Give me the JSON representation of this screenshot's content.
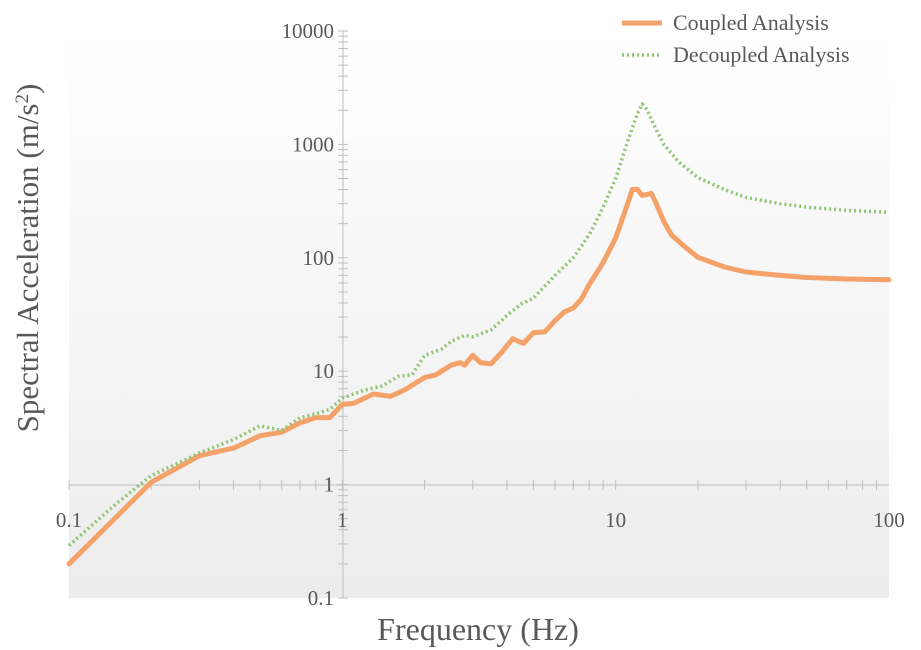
{
  "chart_data": {
    "type": "line",
    "title": "",
    "xlabel": "Frequency (Hz)",
    "ylabel": "Spectral Acceleration (m/s",
    "ylabel_sup": "2",
    "ylabel_close": ")",
    "x_scale": "log",
    "y_scale": "log",
    "xlim": [
      0.1,
      100
    ],
    "ylim": [
      0.1,
      10000
    ],
    "x_ticks": [
      0.1,
      1,
      10,
      100
    ],
    "x_tick_labels": [
      "0.1",
      "1",
      "10",
      "100"
    ],
    "y_ticks": [
      0.1,
      1,
      10,
      100,
      1000,
      10000
    ],
    "y_tick_labels": [
      "0.1",
      "1",
      "10",
      "100",
      "1000",
      "10000"
    ],
    "grid": false,
    "legend_position": "top-right",
    "series": [
      {
        "name": "Coupled Analysis",
        "color": "#F4A16A",
        "style": "solid",
        "points": [
          [
            0.1,
            0.2
          ],
          [
            0.2,
            1.05
          ],
          [
            0.3,
            1.8
          ],
          [
            0.4,
            2.1
          ],
          [
            0.5,
            2.7
          ],
          [
            0.6,
            2.9
          ],
          [
            0.7,
            3.5
          ],
          [
            0.8,
            3.9
          ],
          [
            0.9,
            3.9
          ],
          [
            1.0,
            5.1
          ],
          [
            1.1,
            5.2
          ],
          [
            1.3,
            6.3
          ],
          [
            1.5,
            6.0
          ],
          [
            1.7,
            6.9
          ],
          [
            2.0,
            8.8
          ],
          [
            2.2,
            9.3
          ],
          [
            2.5,
            11.3
          ],
          [
            2.7,
            11.9
          ],
          [
            2.8,
            11.3
          ],
          [
            3.0,
            13.8
          ],
          [
            3.2,
            11.9
          ],
          [
            3.5,
            11.6
          ],
          [
            3.8,
            14.4
          ],
          [
            4.2,
            19.3
          ],
          [
            4.6,
            17.6
          ],
          [
            5.0,
            21.8
          ],
          [
            5.5,
            22.2
          ],
          [
            6.0,
            27.9
          ],
          [
            6.5,
            33.4
          ],
          [
            7.0,
            36.1
          ],
          [
            7.5,
            43.5
          ],
          [
            8.0,
            58.0
          ],
          [
            9.0,
            91.0
          ],
          [
            10.0,
            150.0
          ],
          [
            11.0,
            289.0
          ],
          [
            11.5,
            400.0
          ],
          [
            12.0,
            401.0
          ],
          [
            12.5,
            355.0
          ],
          [
            13.5,
            370.0
          ],
          [
            14.0,
            310.0
          ],
          [
            15.0,
            209.0
          ],
          [
            16.0,
            159.0
          ],
          [
            18.0,
            124.0
          ],
          [
            20.0,
            101.0
          ],
          [
            25.0,
            83.0
          ],
          [
            30.0,
            75.0
          ],
          [
            40.0,
            70.0
          ],
          [
            50.0,
            67.0
          ],
          [
            70.0,
            65.0
          ],
          [
            100.0,
            64.0
          ]
        ]
      },
      {
        "name": "Decoupled Analysis",
        "color": "#8CC470",
        "style": "dotted",
        "points": [
          [
            0.1,
            0.29
          ],
          [
            0.15,
            0.69
          ],
          [
            0.2,
            1.2
          ],
          [
            0.3,
            1.9
          ],
          [
            0.4,
            2.5
          ],
          [
            0.5,
            3.3
          ],
          [
            0.6,
            3.0
          ],
          [
            0.7,
            3.9
          ],
          [
            0.8,
            4.2
          ],
          [
            0.9,
            4.6
          ],
          [
            1.0,
            5.8
          ],
          [
            1.2,
            6.8
          ],
          [
            1.4,
            7.4
          ],
          [
            1.6,
            9.0
          ],
          [
            1.8,
            9.3
          ],
          [
            2.0,
            13.8
          ],
          [
            2.3,
            15.6
          ],
          [
            2.5,
            18.3
          ],
          [
            2.8,
            20.7
          ],
          [
            3.0,
            20.1
          ],
          [
            3.5,
            23.1
          ],
          [
            4.0,
            31.0
          ],
          [
            4.5,
            39.0
          ],
          [
            5.0,
            44.0
          ],
          [
            6.0,
            70.0
          ],
          [
            7.0,
            100.0
          ],
          [
            8.0,
            160.0
          ],
          [
            9.0,
            280.0
          ],
          [
            10.0,
            500.0
          ],
          [
            11.0,
            1020.0
          ],
          [
            12.0,
            1860.0
          ],
          [
            12.5,
            2270.0
          ],
          [
            13.0,
            2030.0
          ],
          [
            14.0,
            1380.0
          ],
          [
            15.0,
            1000.0
          ],
          [
            17.0,
            700.0
          ],
          [
            20.0,
            510.0
          ],
          [
            25.0,
            400.0
          ],
          [
            30.0,
            340.0
          ],
          [
            40.0,
            300.0
          ],
          [
            50.0,
            280.0
          ],
          [
            70.0,
            262.0
          ],
          [
            100.0,
            252.0
          ]
        ]
      }
    ]
  }
}
